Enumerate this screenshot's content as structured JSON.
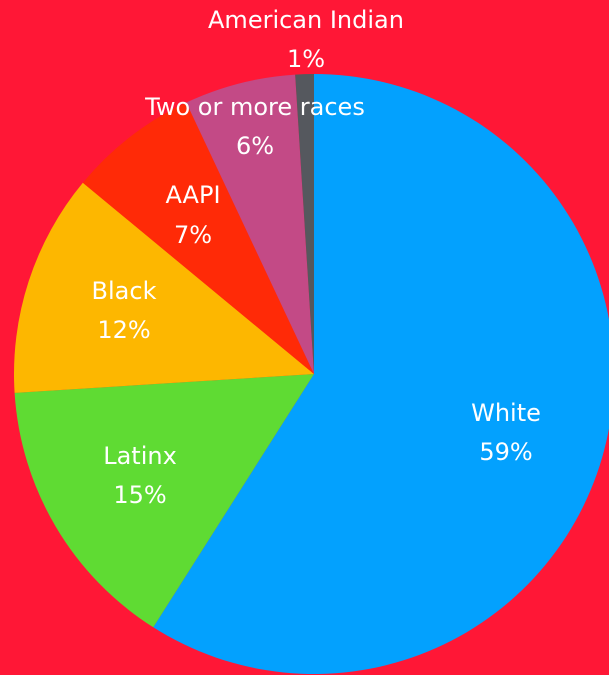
{
  "background_color": "#FF1736",
  "chart_data": {
    "type": "pie",
    "title": "",
    "start_angle_deg": 0,
    "direction": "clockwise",
    "slices": [
      {
        "label": "White",
        "value_label": "59%",
        "value": 59,
        "color": "#03A1FE"
      },
      {
        "label": "Latinx",
        "value_label": "15%",
        "value": 15,
        "color": "#5FDB33"
      },
      {
        "label": "Black",
        "value_label": "12%",
        "value": 12,
        "color": "#FDB700"
      },
      {
        "label": "AAPI",
        "value_label": "7%",
        "value": 7,
        "color": "#FF2A07"
      },
      {
        "label": "Two or more races",
        "value_label": "6%",
        "value": 6,
        "color": "#C34A86"
      },
      {
        "label": "American Indian",
        "value_label": "1%",
        "value": 1,
        "color": "#55585E"
      }
    ]
  }
}
